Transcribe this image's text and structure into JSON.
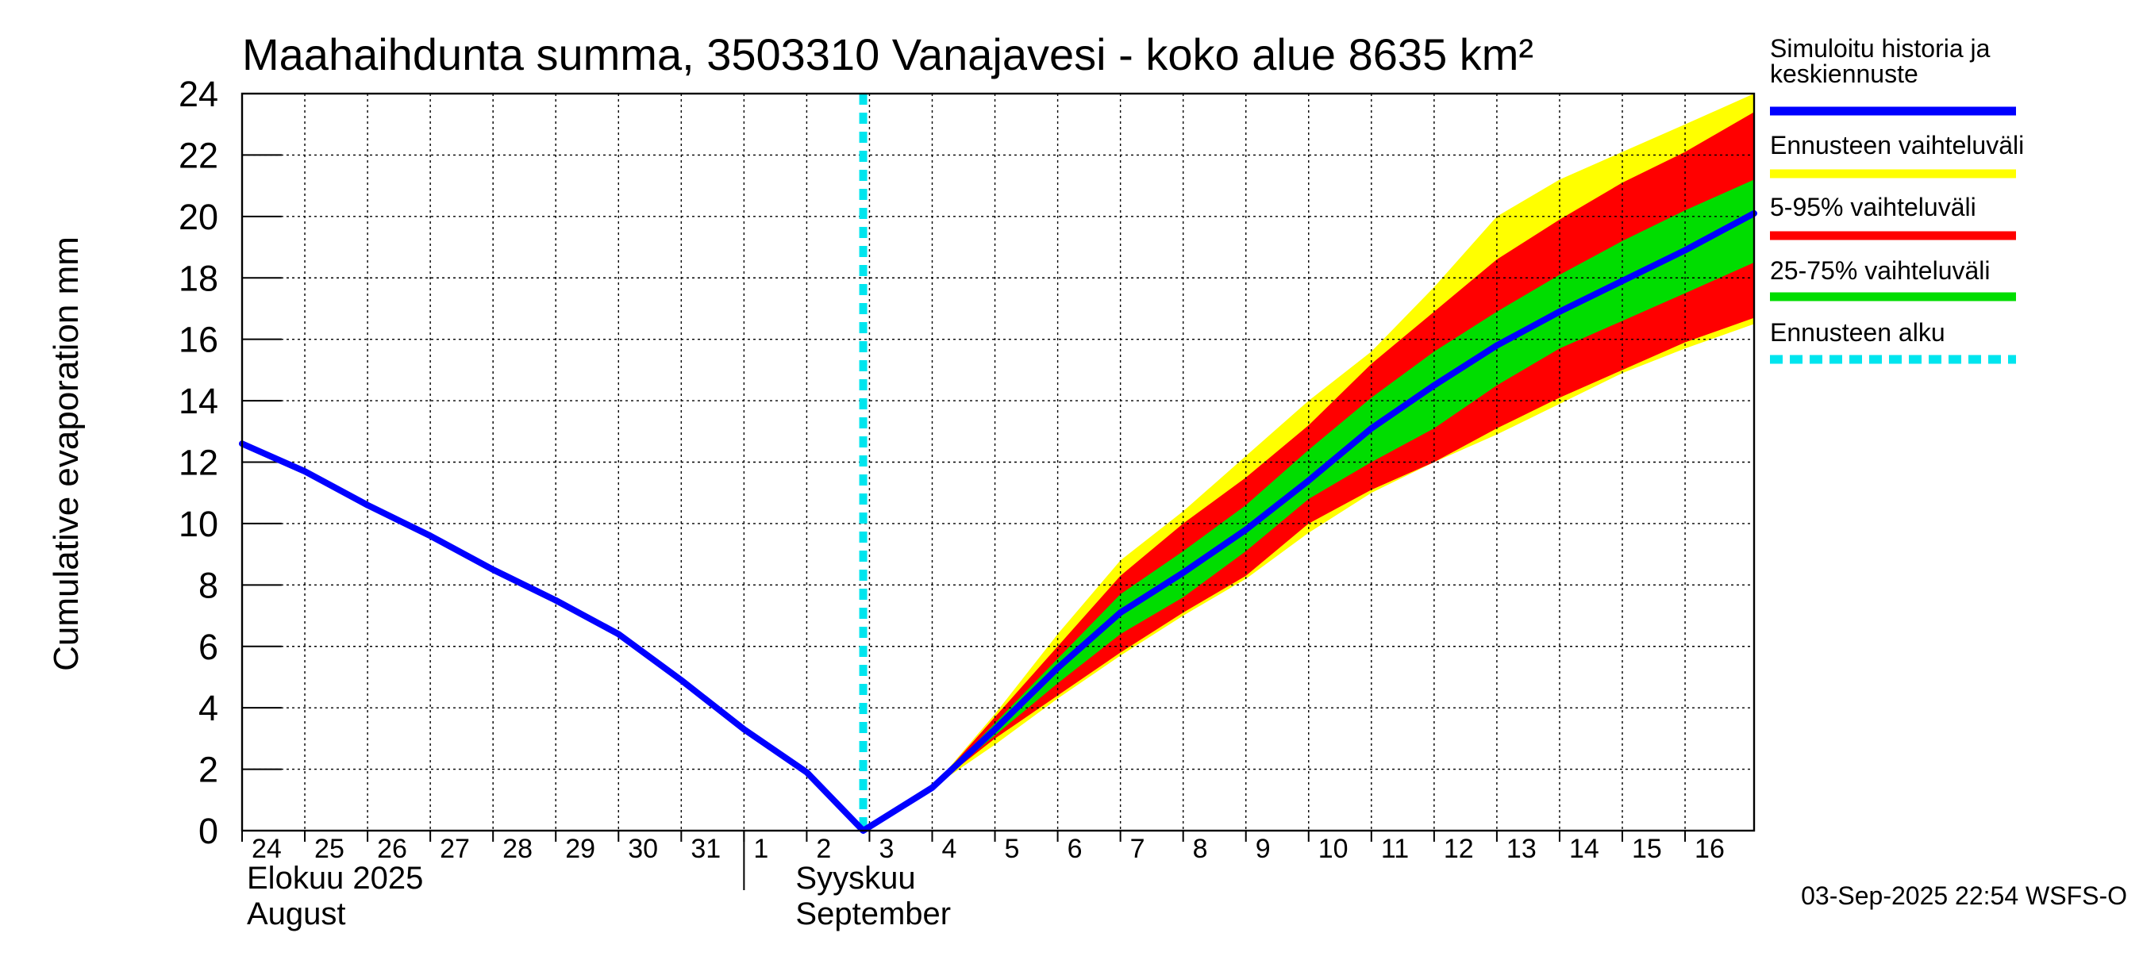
{
  "chart_data": {
    "type": "area",
    "title": "Maahaihdunta summa, 3503310 Vanajavesi - koko alue 8635 km²",
    "ylabel": "Cumulative evaporation   mm",
    "xlabel": "",
    "ylim": [
      0,
      24
    ],
    "yticks": [
      "0",
      "2",
      "4",
      "6",
      "8",
      "10",
      "12",
      "14",
      "16",
      "18",
      "20",
      "22",
      "24"
    ],
    "grid": true,
    "legend_position": "right",
    "x_ticks": [
      {
        "day": 0,
        "label": "24"
      },
      {
        "day": 1,
        "label": "25"
      },
      {
        "day": 2,
        "label": "26"
      },
      {
        "day": 3,
        "label": "27"
      },
      {
        "day": 4,
        "label": "28"
      },
      {
        "day": 5,
        "label": "29"
      },
      {
        "day": 6,
        "label": "30"
      },
      {
        "day": 7,
        "label": "31"
      },
      {
        "day": 8,
        "label": "1"
      },
      {
        "day": 9,
        "label": "2"
      },
      {
        "day": 10,
        "label": "3"
      },
      {
        "day": 11,
        "label": "4"
      },
      {
        "day": 12,
        "label": "5"
      },
      {
        "day": 13,
        "label": "6"
      },
      {
        "day": 14,
        "label": "7"
      },
      {
        "day": 15,
        "label": "8"
      },
      {
        "day": 16,
        "label": "9"
      },
      {
        "day": 17,
        "label": "10"
      },
      {
        "day": 18,
        "label": "11"
      },
      {
        "day": 19,
        "label": "12"
      },
      {
        "day": 20,
        "label": "13"
      },
      {
        "day": 21,
        "label": "14"
      },
      {
        "day": 22,
        "label": "15"
      },
      {
        "day": 23,
        "label": "16"
      }
    ],
    "x_range_days": [
      0,
      24.1
    ],
    "month_labels": [
      {
        "line1": "Elokuu   2025",
        "line2": "August"
      },
      {
        "line1": "Syyskuu",
        "line2": "September"
      }
    ],
    "forecast_start_day": 9.9,
    "series": [
      {
        "name": "Simuloitu historia ja keskiennuste",
        "color": "#0000ff",
        "points": [
          [
            0,
            12.6
          ],
          [
            1,
            11.7
          ],
          [
            2,
            10.6
          ],
          [
            3,
            9.6
          ],
          [
            4,
            8.5
          ],
          [
            5,
            7.5
          ],
          [
            6,
            6.4
          ],
          [
            7,
            4.9
          ],
          [
            8,
            3.3
          ],
          [
            9,
            1.9
          ],
          [
            9.9,
            0
          ],
          [
            11,
            1.4
          ],
          [
            12,
            3.3
          ],
          [
            13,
            5.3
          ],
          [
            14,
            7.1
          ],
          [
            15,
            8.4
          ],
          [
            16,
            9.8
          ],
          [
            17,
            11.4
          ],
          [
            18,
            13.1
          ],
          [
            19,
            14.5
          ],
          [
            20,
            15.8
          ],
          [
            21,
            16.9
          ],
          [
            22,
            17.9
          ],
          [
            23,
            18.9
          ],
          [
            24.1,
            20.1
          ]
        ]
      }
    ],
    "bands": [
      {
        "name": "Ennusteen vaihteluväli",
        "color": "#ffff00",
        "x": [
          11,
          12,
          13,
          14,
          15,
          16,
          17,
          18,
          19,
          20,
          21,
          22,
          23,
          24.1
        ],
        "lower": [
          1.4,
          2.8,
          4.3,
          5.7,
          7.0,
          8.2,
          9.7,
          11.0,
          12.0,
          12.9,
          13.9,
          14.9,
          15.7,
          16.5
        ],
        "upper": [
          1.4,
          3.8,
          6.4,
          8.8,
          10.4,
          12.2,
          14.0,
          15.6,
          17.7,
          20.0,
          21.2,
          22.1,
          23.0,
          24.0
        ]
      },
      {
        "name": "5-95% vaihteluväli",
        "color": "#ff0000",
        "x": [
          11,
          12,
          13,
          14,
          15,
          16,
          17,
          18,
          19,
          20,
          21,
          22,
          23,
          24.1
        ],
        "lower": [
          1.4,
          3.0,
          4.4,
          5.8,
          7.1,
          8.3,
          10.0,
          11.1,
          12.0,
          13.1,
          14.1,
          15.0,
          15.9,
          16.7
        ],
        "upper": [
          1.4,
          3.7,
          6.0,
          8.3,
          10.0,
          11.5,
          13.2,
          15.2,
          16.9,
          18.6,
          19.9,
          21.1,
          22.1,
          23.4
        ]
      },
      {
        "name": "25-75% vaihteluväli",
        "color": "#00dd00",
        "x": [
          11,
          12,
          13,
          14,
          15,
          16,
          17,
          18,
          19,
          20,
          21,
          22,
          23,
          24.1
        ],
        "lower": [
          1.4,
          3.1,
          4.8,
          6.4,
          7.6,
          9.1,
          10.8,
          12.0,
          13.1,
          14.5,
          15.7,
          16.6,
          17.5,
          18.5
        ],
        "upper": [
          1.4,
          3.5,
          5.6,
          7.7,
          9.1,
          10.6,
          12.4,
          14.1,
          15.6,
          16.9,
          18.1,
          19.2,
          20.2,
          21.2
        ]
      }
    ],
    "legend": [
      {
        "label_line1": "Simuloitu historia ja",
        "label_line2": "keskiennuste",
        "color": "#0000ff",
        "style": "solid"
      },
      {
        "label_line1": "Ennusteen vaihteluväli",
        "color": "#ffff00",
        "style": "solid"
      },
      {
        "label_line1": "5-95% vaihteluväli",
        "color": "#ff0000",
        "style": "solid"
      },
      {
        "label_line1": "25-75% vaihteluväli",
        "color": "#00dd00",
        "style": "solid"
      },
      {
        "label_line1": "Ennusteen alku",
        "color": "#00e5ee",
        "style": "dashed"
      }
    ],
    "timestamp": "03-Sep-2025 22:54 WSFS-O"
  }
}
